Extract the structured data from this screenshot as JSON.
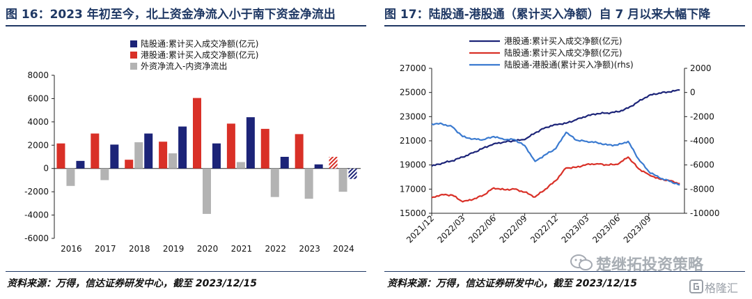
{
  "left": {
    "title": "图 16：2023 年初至今，北上资金净流入小于南下资金净流出",
    "source": "资料来源：万得，信达证券研发中心，截至 2023/12/15"
  },
  "right": {
    "title": "图 17：陆股通-港股通（累计买入净额）自 7 月以来大幅下降",
    "source": "资料来源：万得，信达证券研发中心，截至 2023/12/15"
  },
  "watermark": {
    "text": "楚继拓投资策略",
    "text2": "格隆汇"
  },
  "colors": {
    "navy": "#1c2478",
    "red": "#d93027",
    "gray": "#b3b3b3",
    "blue": "#3a7ad0",
    "title_blue": "#1f3864"
  },
  "chart_data": [
    {
      "type": "bar",
      "categories": [
        "2016",
        "2017",
        "2018",
        "2019",
        "2020",
        "2021",
        "2022",
        "2023",
        "2024"
      ],
      "series": [
        {
          "name": "陆股通:累计买入成交净额(亿元)",
          "color": "#1c2478",
          "values": [
            650,
            2050,
            3000,
            3600,
            2150,
            4400,
            1000,
            350,
            -900
          ],
          "hatched_last": true
        },
        {
          "name": "港股通:累计买入成交净额(亿元)",
          "color": "#d93027",
          "values": [
            2150,
            3000,
            750,
            2300,
            6050,
            3850,
            3400,
            2950,
            1000
          ],
          "hatched_last": true
        },
        {
          "name": "外资净流入-内资净流出",
          "color": "#b3b3b3",
          "values": [
            -1500,
            -1000,
            2250,
            1300,
            -3900,
            550,
            -2450,
            -2600,
            -2000
          ]
        }
      ],
      "ylim": [
        -6000,
        8000
      ],
      "yticks": [
        -6000,
        -4000,
        -2000,
        0,
        2000,
        4000,
        6000,
        8000
      ],
      "legend": "top-left",
      "grid": false
    },
    {
      "type": "line",
      "xticks": [
        "2021/12",
        "2022/03",
        "2022/06",
        "2022/09",
        "2022/12",
        "2023/03",
        "2023/06",
        "2023/09"
      ],
      "x_range": [
        "2021/12",
        "2023/12/15"
      ],
      "ylim_left": [
        15000,
        27000
      ],
      "yticks_left": [
        15000,
        17000,
        19000,
        21000,
        23000,
        25000,
        27000
      ],
      "ylim_right": [
        -10000,
        2000
      ],
      "yticks_right": [
        -10000,
        -8000,
        -6000,
        -4000,
        -2000,
        0,
        2000
      ],
      "legend": "top-left",
      "grid": false,
      "series": [
        {
          "name": "港股通:累计买入成交净额(亿元)",
          "axis": "left",
          "color": "#1c2478",
          "points": [
            [
              "2021/12",
              18900
            ],
            [
              "2022/01",
              19150
            ],
            [
              "2022/02",
              19350
            ],
            [
              "2022/03",
              19650
            ],
            [
              "2022/04",
              20000
            ],
            [
              "2022/05",
              20400
            ],
            [
              "2022/06",
              20750
            ],
            [
              "2022/07",
              20900
            ],
            [
              "2022/08",
              21000
            ],
            [
              "2022/09",
              21100
            ],
            [
              "2022/10",
              21650
            ],
            [
              "2022/11",
              22100
            ],
            [
              "2022/12",
              22350
            ],
            [
              "2023/01",
              22450
            ],
            [
              "2023/02",
              22750
            ],
            [
              "2023/03",
              23050
            ],
            [
              "2023/04",
              23250
            ],
            [
              "2023/05",
              23300
            ],
            [
              "2023/06",
              23400
            ],
            [
              "2023/07",
              23700
            ],
            [
              "2023/08",
              24250
            ],
            [
              "2023/09",
              24750
            ],
            [
              "2023/10",
              24950
            ],
            [
              "2023/11",
              25050
            ],
            [
              "2023/12",
              25200
            ]
          ]
        },
        {
          "name": "陆股通:累计买入成交净额(亿元)",
          "axis": "left",
          "color": "#d93027",
          "points": [
            [
              "2021/12",
              16300
            ],
            [
              "2022/01",
              16550
            ],
            [
              "2022/02",
              16500
            ],
            [
              "2022/03",
              15950
            ],
            [
              "2022/04",
              16150
            ],
            [
              "2022/05",
              16500
            ],
            [
              "2022/06",
              17100
            ],
            [
              "2022/07",
              16950
            ],
            [
              "2022/08",
              17000
            ],
            [
              "2022/09",
              16750
            ],
            [
              "2022/10",
              16350
            ],
            [
              "2022/11",
              17000
            ],
            [
              "2022/12",
              17700
            ],
            [
              "2023/01",
              18750
            ],
            [
              "2023/02",
              18800
            ],
            [
              "2023/03",
              19050
            ],
            [
              "2023/04",
              19100
            ],
            [
              "2023/05",
              19000
            ],
            [
              "2023/06",
              19050
            ],
            [
              "2023/07",
              19650
            ],
            [
              "2023/08",
              18700
            ],
            [
              "2023/09",
              18200
            ],
            [
              "2023/10",
              17850
            ],
            [
              "2023/11",
              17700
            ],
            [
              "2023/12",
              17450
            ]
          ]
        },
        {
          "name": "陆股通-港股通(累计买入净额)(rhs)",
          "axis": "right",
          "color": "#3a7ad0",
          "points": [
            [
              "2021/12",
              -2600
            ],
            [
              "2022/01",
              -2600
            ],
            [
              "2022/02",
              -2850
            ],
            [
              "2022/03",
              -3650
            ],
            [
              "2022/04",
              -3850
            ],
            [
              "2022/05",
              -3900
            ],
            [
              "2022/06",
              -3650
            ],
            [
              "2022/07",
              -3900
            ],
            [
              "2022/08",
              -3900
            ],
            [
              "2022/09",
              -4400
            ],
            [
              "2022/10",
              -5700
            ],
            [
              "2022/11",
              -5150
            ],
            [
              "2022/12",
              -4650
            ],
            [
              "2023/01",
              -3300
            ],
            [
              "2023/02",
              -3950
            ],
            [
              "2023/03",
              -4050
            ],
            [
              "2023/04",
              -4150
            ],
            [
              "2023/05",
              -4350
            ],
            [
              "2023/06",
              -4350
            ],
            [
              "2023/07",
              -4050
            ],
            [
              "2023/08",
              -5500
            ],
            [
              "2023/09",
              -6550
            ],
            [
              "2023/10",
              -7050
            ],
            [
              "2023/11",
              -7350
            ],
            [
              "2023/12",
              -7650
            ]
          ]
        }
      ]
    }
  ]
}
